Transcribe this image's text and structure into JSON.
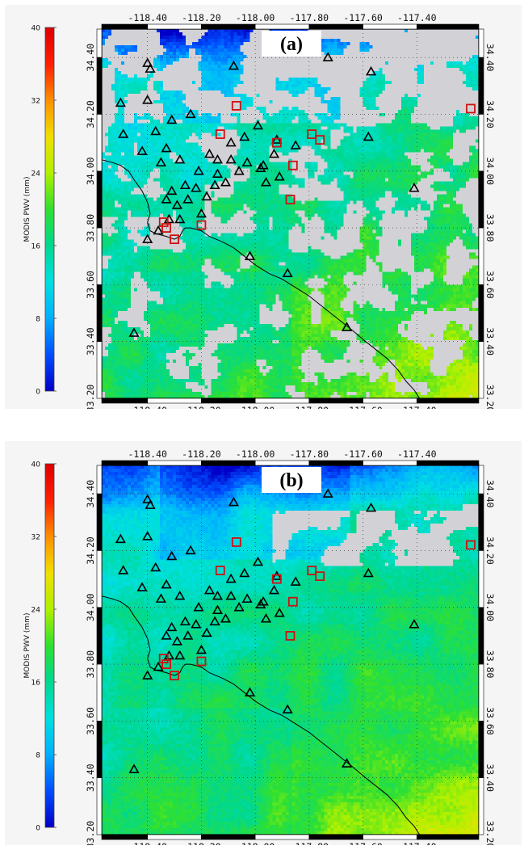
{
  "colorbar": {
    "label": "MODIS PWV (mm)",
    "ticks": [
      "40",
      "32",
      "24",
      "16",
      "8",
      "0"
    ],
    "range": [
      0,
      40
    ],
    "colormap": [
      "#0000c8",
      "#0050ff",
      "#00b0ff",
      "#00e0e0",
      "#00d890",
      "#30e030",
      "#b0f000",
      "#f0e000",
      "#ff9000",
      "#ff2000",
      "#e00000"
    ]
  },
  "axes": {
    "lon_ticks": [
      "-118.40",
      "-118.20",
      "-118.00",
      "-117.80",
      "-117.60",
      "-117.40"
    ],
    "lon_values": [
      -118.4,
      -118.2,
      -118.0,
      -117.8,
      -117.6,
      -117.4
    ],
    "lat_ticks": [
      "34.40",
      "34.20",
      "34.00",
      "33.80",
      "33.60",
      "33.40",
      "33.20"
    ],
    "lat_values": [
      34.4,
      34.2,
      34.0,
      33.8,
      33.6,
      33.4,
      33.2
    ],
    "lon_range": [
      -118.57,
      -117.17
    ],
    "lat_range": [
      33.2,
      34.5
    ],
    "grid": true
  },
  "panels": [
    {
      "tag": "(a)",
      "cloud_cover": "high"
    },
    {
      "tag": "(b)",
      "cloud_cover": "low"
    }
  ],
  "triangle_stations": [
    [
      -118.4,
      34.38
    ],
    [
      -118.39,
      34.36
    ],
    [
      -118.5,
      34.24
    ],
    [
      -118.4,
      34.25
    ],
    [
      -118.49,
      34.13
    ],
    [
      -118.42,
      34.07
    ],
    [
      -118.37,
      34.14
    ],
    [
      -118.31,
      34.18
    ],
    [
      -118.24,
      34.2
    ],
    [
      -118.33,
      34.08
    ],
    [
      -118.35,
      34.03
    ],
    [
      -118.28,
      34.04
    ],
    [
      -118.17,
      34.06
    ],
    [
      -118.14,
      34.04
    ],
    [
      -118.09,
      34.04
    ],
    [
      -118.14,
      33.99
    ],
    [
      -118.06,
      34.0
    ],
    [
      -118.03,
      34.03
    ],
    [
      -117.98,
      34.01
    ],
    [
      -117.97,
      34.02
    ],
    [
      -117.93,
      34.06
    ],
    [
      -117.92,
      34.11
    ],
    [
      -117.85,
      34.09
    ],
    [
      -118.21,
      34.0
    ],
    [
      -118.22,
      33.94
    ],
    [
      -118.15,
      33.95
    ],
    [
      -118.11,
      33.96
    ],
    [
      -118.26,
      33.95
    ],
    [
      -118.31,
      33.93
    ],
    [
      -118.33,
      33.9
    ],
    [
      -118.29,
      33.88
    ],
    [
      -118.25,
      33.9
    ],
    [
      -118.18,
      33.91
    ],
    [
      -118.2,
      33.85
    ],
    [
      -118.32,
      33.83
    ],
    [
      -118.28,
      33.83
    ],
    [
      -118.4,
      33.76
    ],
    [
      -118.36,
      33.79
    ],
    [
      -118.02,
      33.7
    ],
    [
      -117.88,
      33.64
    ],
    [
      -118.45,
      33.43
    ],
    [
      -117.66,
      33.45
    ],
    [
      -117.58,
      34.12
    ],
    [
      -117.73,
      34.4
    ],
    [
      -117.57,
      34.35
    ],
    [
      -118.08,
      34.37
    ],
    [
      -117.99,
      34.16
    ],
    [
      -117.96,
      33.96
    ],
    [
      -117.91,
      33.98
    ],
    [
      -117.41,
      33.94
    ],
    [
      -118.09,
      34.1
    ],
    [
      -118.04,
      34.12
    ]
  ],
  "square_stations": [
    [
      -118.07,
      34.23
    ],
    [
      -118.13,
      34.13
    ],
    [
      -117.92,
      34.1
    ],
    [
      -117.79,
      34.13
    ],
    [
      -117.76,
      34.11
    ],
    [
      -117.86,
      34.02
    ],
    [
      -117.87,
      33.9
    ],
    [
      -118.34,
      33.82
    ],
    [
      -118.33,
      33.8
    ],
    [
      -118.3,
      33.76
    ],
    [
      -118.2,
      33.81
    ],
    [
      -117.2,
      34.22
    ]
  ],
  "coastline": [
    [
      -118.57,
      34.04
    ],
    [
      -118.53,
      34.03
    ],
    [
      -118.5,
      34.02
    ],
    [
      -118.47,
      34.0
    ],
    [
      -118.45,
      33.97
    ],
    [
      -118.42,
      33.93
    ],
    [
      -118.4,
      33.89
    ],
    [
      -118.39,
      33.85
    ],
    [
      -118.4,
      33.82
    ],
    [
      -118.39,
      33.79
    ],
    [
      -118.37,
      33.78
    ],
    [
      -118.33,
      33.77
    ],
    [
      -118.3,
      33.76
    ],
    [
      -118.28,
      33.77
    ],
    [
      -118.27,
      33.79
    ],
    [
      -118.26,
      33.8
    ],
    [
      -118.24,
      33.8
    ],
    [
      -118.2,
      33.79
    ],
    [
      -118.17,
      33.77
    ],
    [
      -118.12,
      33.75
    ],
    [
      -118.08,
      33.73
    ],
    [
      -118.04,
      33.7
    ],
    [
      -118.0,
      33.67
    ],
    [
      -117.95,
      33.64
    ],
    [
      -117.9,
      33.62
    ],
    [
      -117.85,
      33.59
    ],
    [
      -117.8,
      33.56
    ],
    [
      -117.76,
      33.53
    ],
    [
      -117.72,
      33.5
    ],
    [
      -117.68,
      33.47
    ],
    [
      -117.64,
      33.44
    ],
    [
      -117.59,
      33.4
    ],
    [
      -117.55,
      33.37
    ],
    [
      -117.51,
      33.34
    ],
    [
      -117.47,
      33.3
    ],
    [
      -117.44,
      33.26
    ],
    [
      -117.41,
      33.23
    ],
    [
      -117.39,
      33.2
    ]
  ]
}
